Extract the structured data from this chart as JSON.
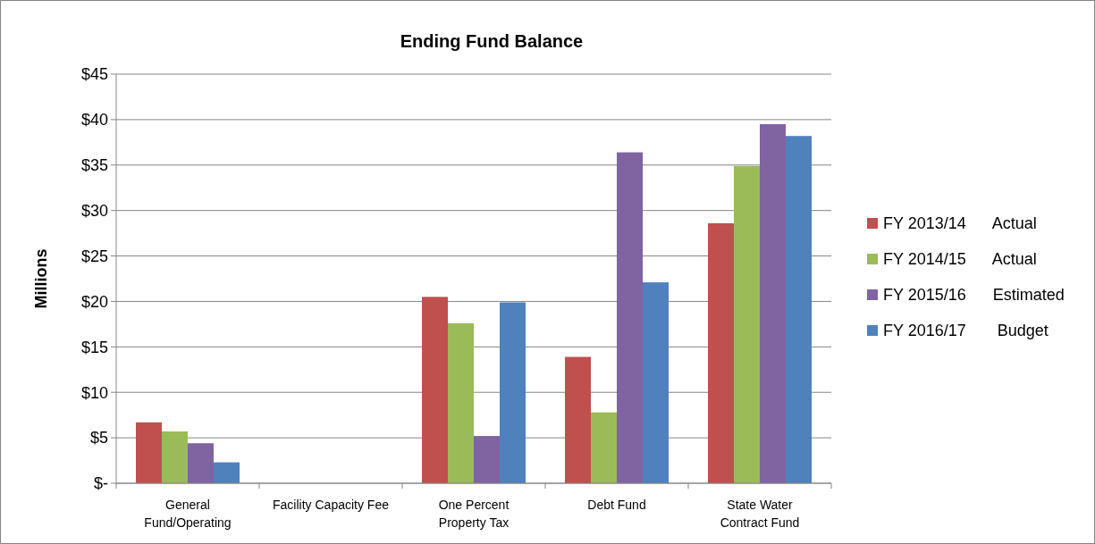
{
  "chart_data": {
    "type": "bar",
    "title": "Ending Fund Balance",
    "ylabel": "Millions",
    "categories": [
      "General\nFund/Operating",
      "Facility Capacity Fee",
      "One Percent\nProperty Tax",
      "Debt Fund",
      "State Water\nContract Fund"
    ],
    "series": [
      {
        "name": "FY 2013/14      Actual",
        "color": "#c0504d",
        "values": [
          6.7,
          0,
          20.5,
          13.9,
          28.6
        ]
      },
      {
        "name": "FY 2014/15      Actual",
        "color": "#9bbb59",
        "values": [
          5.7,
          0,
          17.6,
          7.8,
          34.9
        ]
      },
      {
        "name": "FY 2015/16      Estimated",
        "color": "#8064a2",
        "values": [
          4.4,
          0,
          5.2,
          36.4,
          39.5
        ]
      },
      {
        "name": "FY 2016/17       Budget",
        "color": "#4f81bd",
        "values": [
          2.3,
          0,
          19.9,
          22.1,
          38.2
        ]
      }
    ],
    "ylim": [
      0,
      45
    ],
    "yticks": [
      {
        "value": 0,
        "label": "$-"
      },
      {
        "value": 5,
        "label": "$5"
      },
      {
        "value": 10,
        "label": "$10"
      },
      {
        "value": 15,
        "label": "$15"
      },
      {
        "value": 20,
        "label": "$20"
      },
      {
        "value": 25,
        "label": "$25"
      },
      {
        "value": 30,
        "label": "$30"
      },
      {
        "value": 35,
        "label": "$35"
      },
      {
        "value": 40,
        "label": "$40"
      },
      {
        "value": 45,
        "label": "$45"
      }
    ],
    "grid": "y",
    "legend": "right"
  }
}
